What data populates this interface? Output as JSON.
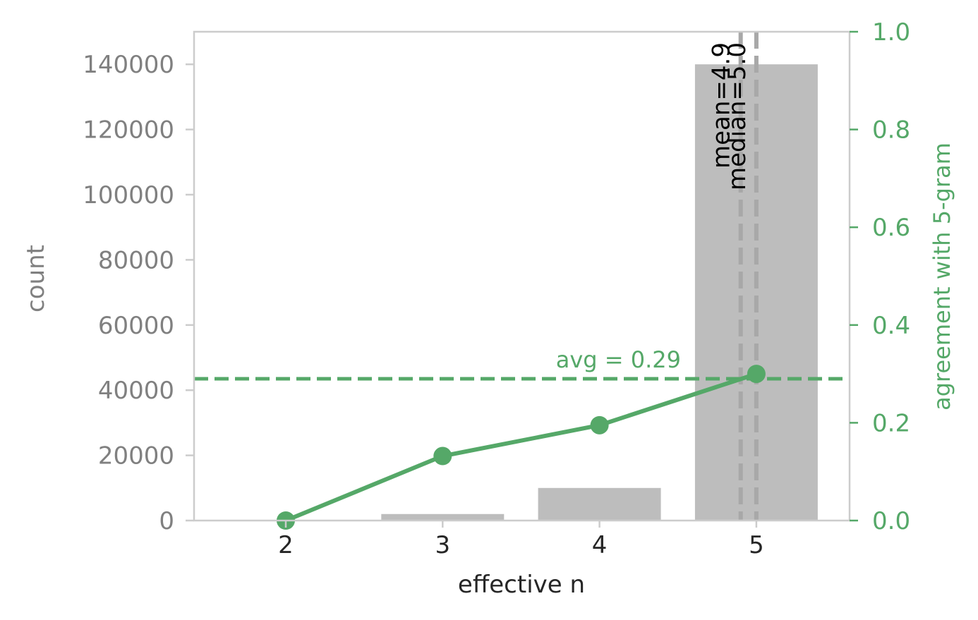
{
  "chart_data": {
    "type": "bar",
    "categories": [
      "2",
      "3",
      "4",
      "5"
    ],
    "xlabel": "effective n",
    "ylabel": "count",
    "ylim": [
      0,
      150000
    ],
    "y_ticks": [
      "0",
      "20000",
      "40000",
      "60000",
      "80000",
      "100000",
      "120000",
      "140000"
    ],
    "bar_values": [
      0,
      2000,
      10000,
      140000
    ],
    "bar_color": "#bdbdbd",
    "secondary_axis": {
      "label": "agreement with 5-gram",
      "ylim": [
        0,
        1.0
      ],
      "ticks": [
        "0.0",
        "0.2",
        "0.4",
        "0.6",
        "0.8",
        "1.0"
      ],
      "color": "#55a868"
    },
    "line_series": {
      "x": [
        "2",
        "3",
        "4",
        "5"
      ],
      "values": [
        0.0,
        0.132,
        0.195,
        0.3
      ]
    },
    "avg_line": {
      "value": 0.29,
      "label": "avg = 0.29"
    },
    "vlines": [
      {
        "x": 4.9,
        "label": "mean=4.9"
      },
      {
        "x": 5.0,
        "label": "median=5.0"
      }
    ],
    "grid": false
  }
}
